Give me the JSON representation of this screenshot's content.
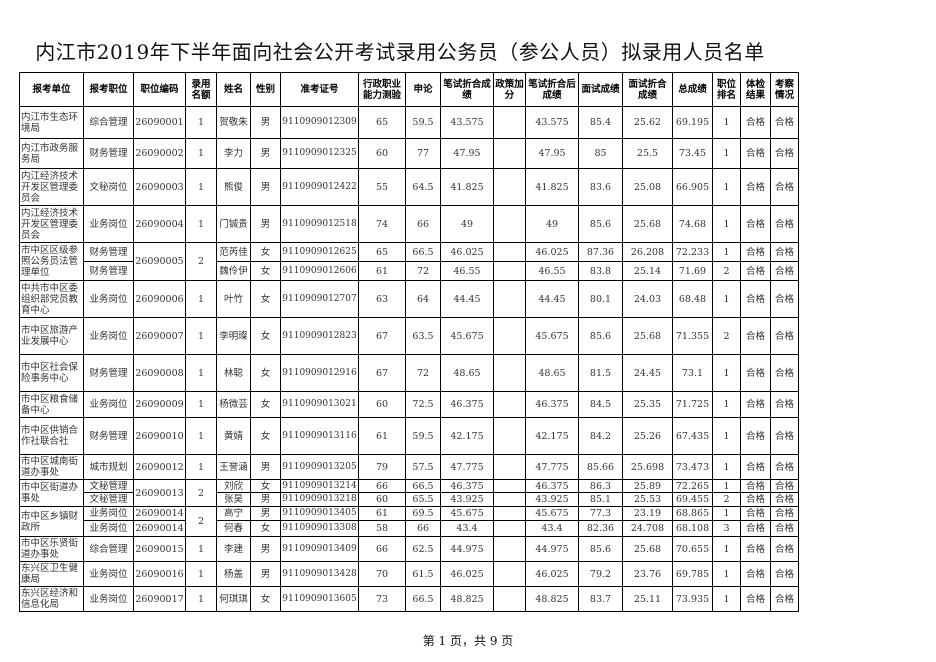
{
  "title": "内江市2019年下半年面向社会公开考试录用公务员（参公人员）拟录用人员名单",
  "columns": [
    "报考单位",
    "报考职位",
    "职位编码",
    "录用名额",
    "姓名",
    "性别",
    "准考证号",
    "行政职业能力测验",
    "申论",
    "笔试折合成绩",
    "政策加分",
    "笔试折合后成绩",
    "面试成绩",
    "面试折合成绩",
    "总成绩",
    "职位排名",
    "体检结果",
    "考察情况"
  ],
  "rows": [
    {
      "unit": "内江市生态环境局",
      "post": "综合管理",
      "code": "26090001",
      "quota": "1",
      "name": "贺敬朱",
      "sex": "男",
      "exam_id": "9110909012309",
      "xc": "65",
      "sl": "59.5",
      "bs": "43.575",
      "bonus": "",
      "bsh": "43.575",
      "ms": "85.4",
      "msz": "25.62",
      "total": "69.195",
      "rank": "1",
      "tj": "合格",
      "kc": "合格"
    },
    {
      "unit": "内江市政务服务局",
      "post": "财务管理",
      "code": "26090002",
      "quota": "1",
      "name": "李力",
      "sex": "男",
      "exam_id": "9110909012325",
      "xc": "60",
      "sl": "77",
      "bs": "47.95",
      "bonus": "",
      "bsh": "47.95",
      "ms": "85",
      "msz": "25.5",
      "total": "73.45",
      "rank": "1",
      "tj": "合格",
      "kc": "合格"
    },
    {
      "unit": "内江经济技术开发区管理委员会",
      "post": "文秘岗位",
      "code": "26090003",
      "quota": "1",
      "name": "熊俊",
      "sex": "男",
      "exam_id": "9110909012422",
      "xc": "55",
      "sl": "64.5",
      "bs": "41.825",
      "bonus": "",
      "bsh": "41.825",
      "ms": "83.6",
      "msz": "25.08",
      "total": "66.905",
      "rank": "1",
      "tj": "合格",
      "kc": "合格"
    },
    {
      "unit": "内江经济技术开发区管理委员会",
      "post": "业务岗位",
      "code": "26090004",
      "quota": "1",
      "name": "门铖贵",
      "sex": "男",
      "exam_id": "9110909012518",
      "xc": "74",
      "sl": "66",
      "bs": "49",
      "bonus": "",
      "bsh": "49",
      "ms": "85.6",
      "msz": "25.68",
      "total": "74.68",
      "rank": "1",
      "tj": "合格",
      "kc": "合格"
    },
    {
      "unit": "市中区区级参照公务员法管理单位",
      "post": "财务管理",
      "code": "26090005",
      "quota": "2",
      "name": "范芮佳",
      "sex": "女",
      "exam_id": "9110909012625",
      "xc": "65",
      "sl": "66.5",
      "bs": "46.025",
      "bonus": "",
      "bsh": "46.025",
      "ms": "87.36",
      "msz": "26.208",
      "total": "72.233",
      "rank": "1",
      "tj": "合格",
      "kc": "合格"
    },
    {
      "post": "财务管理",
      "name": "魏伶伊",
      "sex": "女",
      "exam_id": "9110909012606",
      "xc": "61",
      "sl": "72",
      "bs": "46.55",
      "bonus": "",
      "bsh": "46.55",
      "ms": "83.8",
      "msz": "25.14",
      "total": "71.69",
      "rank": "2",
      "tj": "合格",
      "kc": "合格"
    },
    {
      "unit": "中共市中区委组织部党员教育中心",
      "post": "业务岗位",
      "code": "26090006",
      "quota": "1",
      "name": "叶竹",
      "sex": "女",
      "exam_id": "9110909012707",
      "xc": "63",
      "sl": "64",
      "bs": "44.45",
      "bonus": "",
      "bsh": "44.45",
      "ms": "80.1",
      "msz": "24.03",
      "total": "68.48",
      "rank": "1",
      "tj": "合格",
      "kc": "合格"
    },
    {
      "unit": "市中区旅游产业发展中心",
      "post": "业务岗位",
      "code": "26090007",
      "quota": "1",
      "name": "李明璨",
      "sex": "女",
      "exam_id": "9110909012823",
      "xc": "67",
      "sl": "63.5",
      "bs": "45.675",
      "bonus": "",
      "bsh": "45.675",
      "ms": "85.6",
      "msz": "25.68",
      "total": "71.355",
      "rank": "2",
      "tj": "合格",
      "kc": "合格"
    },
    {
      "unit": "市中区社会保险事务中心",
      "post": "财务管理",
      "code": "26090008",
      "quota": "1",
      "name": "林聪",
      "sex": "女",
      "exam_id": "9110909012916",
      "xc": "67",
      "sl": "72",
      "bs": "48.65",
      "bonus": "",
      "bsh": "48.65",
      "ms": "81.5",
      "msz": "24.45",
      "total": "73.1",
      "rank": "1",
      "tj": "合格",
      "kc": "合格"
    },
    {
      "unit": "市中区粮食储备中心",
      "post": "业务岗位",
      "code": "26090009",
      "quota": "1",
      "name": "杨微芸",
      "sex": "女",
      "exam_id": "9110909013021",
      "xc": "60",
      "sl": "72.5",
      "bs": "46.375",
      "bonus": "",
      "bsh": "46.375",
      "ms": "84.5",
      "msz": "25.35",
      "total": "71.725",
      "rank": "1",
      "tj": "合格",
      "kc": "合格"
    },
    {
      "unit": "市中区供销合作社联合社",
      "post": "财务管理",
      "code": "26090010",
      "quota": "1",
      "name": "黄婧",
      "sex": "女",
      "exam_id": "9110909013116",
      "xc": "61",
      "sl": "59.5",
      "bs": "42.175",
      "bonus": "",
      "bsh": "42.175",
      "ms": "84.2",
      "msz": "25.26",
      "total": "67.435",
      "rank": "1",
      "tj": "合格",
      "kc": "合格"
    },
    {
      "unit": "市中区城南街道办事处",
      "post": "城市规划",
      "code": "26090012",
      "quota": "1",
      "name": "王誉涵",
      "sex": "男",
      "exam_id": "9110909013205",
      "xc": "79",
      "sl": "57.5",
      "bs": "47.775",
      "bonus": "",
      "bsh": "47.775",
      "ms": "85.66",
      "msz": "25.698",
      "total": "73.473",
      "rank": "1",
      "tj": "合格",
      "kc": "合格"
    },
    {
      "unit": "市中区街道办事处",
      "post": "文秘管理",
      "code": "26090013",
      "quota": "2",
      "name": "刘欣",
      "sex": "女",
      "exam_id": "9110909013214",
      "xc": "66",
      "sl": "66.5",
      "bs": "46.375",
      "bonus": "",
      "bsh": "46.375",
      "ms": "86.3",
      "msz": "25.89",
      "total": "72.265",
      "rank": "1",
      "tj": "合格",
      "kc": "合格"
    },
    {
      "post": "文秘管理",
      "name": "张昊",
      "sex": "男",
      "exam_id": "9110909013218",
      "xc": "60",
      "sl": "65.5",
      "bs": "43.925",
      "bonus": "",
      "bsh": "43.925",
      "ms": "85.1",
      "msz": "25.53",
      "total": "69.455",
      "rank": "2",
      "tj": "合格",
      "kc": "合格"
    },
    {
      "unit": "市中区乡镇财政所",
      "post": "业务岗位",
      "code": "26090014",
      "quota": "2",
      "name": "高宁",
      "sex": "男",
      "exam_id": "9110909013405",
      "xc": "61",
      "sl": "69.5",
      "bs": "45.675",
      "bonus": "",
      "bsh": "45.675",
      "ms": "77.3",
      "msz": "23.19",
      "total": "68.865",
      "rank": "1",
      "tj": "合格",
      "kc": "合格"
    },
    {
      "post": "业务岗位",
      "code": "26090014",
      "name": "何春",
      "sex": "女",
      "exam_id": "9110909013308",
      "xc": "58",
      "sl": "66",
      "bs": "43.4",
      "bonus": "",
      "bsh": "43.4",
      "ms": "82.36",
      "msz": "24.708",
      "total": "68.108",
      "rank": "3",
      "tj": "合格",
      "kc": "合格"
    },
    {
      "unit": "市中区乐贤街道办事处",
      "post": "综合管理",
      "code": "26090015",
      "quota": "1",
      "name": "李建",
      "sex": "男",
      "exam_id": "9110909013409",
      "xc": "66",
      "sl": "62.5",
      "bs": "44.975",
      "bonus": "",
      "bsh": "44.975",
      "ms": "85.6",
      "msz": "25.68",
      "total": "70.655",
      "rank": "1",
      "tj": "合格",
      "kc": "合格"
    },
    {
      "unit": "东兴区卫生健康局",
      "post": "业务岗位",
      "code": "26090016",
      "quota": "1",
      "name": "杨盖",
      "sex": "男",
      "exam_id": "9110909013428",
      "xc": "70",
      "sl": "61.5",
      "bs": "46.025",
      "bonus": "",
      "bsh": "46.025",
      "ms": "79.2",
      "msz": "23.76",
      "total": "69.785",
      "rank": "1",
      "tj": "合格",
      "kc": "合格"
    },
    {
      "unit": "东兴区经济和信息化局",
      "post": "业务岗位",
      "code": "26090017",
      "quota": "1",
      "name": "何琪琪",
      "sex": "女",
      "exam_id": "9110909013605",
      "xc": "73",
      "sl": "66.5",
      "bs": "48.825",
      "bonus": "",
      "bsh": "48.825",
      "ms": "83.7",
      "msz": "25.11",
      "total": "73.935",
      "rank": "1",
      "tj": "合格",
      "kc": "合格"
    }
  ],
  "footer": "第 1 页，共 9 页"
}
